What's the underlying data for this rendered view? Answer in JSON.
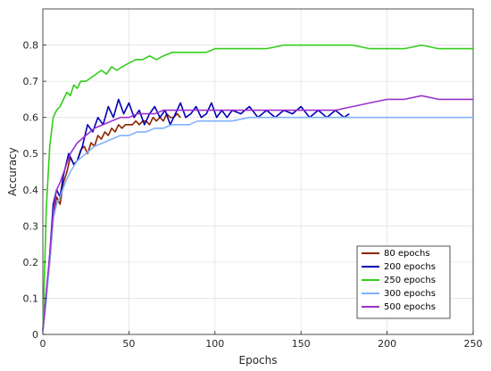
{
  "chart_data": {
    "type": "line",
    "xlabel": "Epochs",
    "ylabel": "Accuracy",
    "xlim": [
      0,
      250
    ],
    "ylim": [
      0,
      0.9
    ],
    "xticks": [
      "0",
      "50",
      "100",
      "150",
      "200",
      "250"
    ],
    "yticks": [
      "0",
      "0.1",
      "0.2",
      "0.3",
      "0.4",
      "0.5",
      "0.6",
      "0.7",
      "0.8"
    ],
    "grid": true,
    "legend_position": "bottom-right",
    "series": [
      {
        "name": "80 epochs",
        "color": "#8B2500",
        "x": [
          0,
          2,
          4,
          6,
          8,
          10,
          12,
          14,
          16,
          18,
          20,
          22,
          24,
          26,
          28,
          30,
          32,
          34,
          36,
          38,
          40,
          42,
          44,
          46,
          48,
          50,
          52,
          54,
          56,
          58,
          60,
          62,
          64,
          66,
          68,
          70,
          72,
          74,
          76,
          78,
          80
        ],
        "y": [
          0.01,
          0.12,
          0.2,
          0.32,
          0.38,
          0.36,
          0.42,
          0.45,
          0.49,
          0.47,
          0.48,
          0.51,
          0.52,
          0.5,
          0.53,
          0.52,
          0.55,
          0.54,
          0.56,
          0.55,
          0.57,
          0.56,
          0.58,
          0.57,
          0.58,
          0.58,
          0.58,
          0.59,
          0.58,
          0.59,
          0.59,
          0.58,
          0.6,
          0.59,
          0.6,
          0.59,
          0.61,
          0.6,
          0.6,
          0.61,
          0.6
        ]
      },
      {
        "name": "200 epochs",
        "color": "#0000B3",
        "x": [
          0,
          2,
          4,
          6,
          8,
          10,
          12,
          15,
          18,
          20,
          23,
          26,
          29,
          32,
          35,
          38,
          41,
          44,
          47,
          50,
          53,
          56,
          59,
          62,
          65,
          68,
          71,
          74,
          77,
          80,
          83,
          86,
          89,
          92,
          95,
          98,
          101,
          104,
          107,
          110,
          115,
          120,
          125,
          130,
          135,
          140,
          145,
          150,
          155,
          160,
          165,
          170,
          175,
          178
        ],
        "y": [
          0.01,
          0.1,
          0.22,
          0.36,
          0.4,
          0.38,
          0.44,
          0.5,
          0.47,
          0.48,
          0.52,
          0.58,
          0.56,
          0.6,
          0.58,
          0.63,
          0.6,
          0.65,
          0.61,
          0.64,
          0.6,
          0.62,
          0.58,
          0.61,
          0.63,
          0.6,
          0.62,
          0.58,
          0.61,
          0.64,
          0.6,
          0.61,
          0.63,
          0.6,
          0.61,
          0.64,
          0.6,
          0.62,
          0.6,
          0.62,
          0.61,
          0.63,
          0.6,
          0.62,
          0.6,
          0.62,
          0.61,
          0.63,
          0.6,
          0.62,
          0.6,
          0.62,
          0.6,
          0.61
        ]
      },
      {
        "name": "250 epochs",
        "color": "#33CC1A",
        "x": [
          0,
          2,
          4,
          6,
          8,
          10,
          12,
          14,
          16,
          18,
          20,
          22,
          25,
          28,
          31,
          34,
          37,
          40,
          43,
          46,
          50,
          54,
          58,
          62,
          66,
          70,
          75,
          80,
          85,
          90,
          95,
          100,
          105,
          110,
          120,
          130,
          140,
          150,
          160,
          170,
          180,
          190,
          200,
          210,
          220,
          230,
          240,
          250
        ],
        "y": [
          0.01,
          0.35,
          0.52,
          0.6,
          0.62,
          0.63,
          0.65,
          0.67,
          0.66,
          0.69,
          0.68,
          0.7,
          0.7,
          0.71,
          0.72,
          0.73,
          0.72,
          0.74,
          0.73,
          0.74,
          0.75,
          0.76,
          0.76,
          0.77,
          0.76,
          0.77,
          0.78,
          0.78,
          0.78,
          0.78,
          0.78,
          0.79,
          0.79,
          0.79,
          0.79,
          0.79,
          0.8,
          0.8,
          0.8,
          0.8,
          0.8,
          0.79,
          0.79,
          0.79,
          0.8,
          0.79,
          0.79,
          0.79
        ]
      },
      {
        "name": "300 epochs",
        "color": "#7FB2FF",
        "x": [
          0,
          2,
          4,
          6,
          8,
          10,
          13,
          16,
          20,
          25,
          30,
          35,
          40,
          45,
          50,
          55,
          60,
          65,
          70,
          75,
          80,
          85,
          90,
          95,
          100,
          110,
          120,
          130,
          140,
          150,
          160,
          170,
          180,
          190,
          200,
          210,
          220,
          230,
          240,
          250
        ],
        "y": [
          0.01,
          0.1,
          0.2,
          0.32,
          0.36,
          0.38,
          0.42,
          0.45,
          0.48,
          0.5,
          0.52,
          0.53,
          0.54,
          0.55,
          0.55,
          0.56,
          0.56,
          0.57,
          0.57,
          0.58,
          0.58,
          0.58,
          0.59,
          0.59,
          0.59,
          0.59,
          0.6,
          0.6,
          0.6,
          0.6,
          0.6,
          0.6,
          0.6,
          0.6,
          0.6,
          0.6,
          0.6,
          0.6,
          0.6,
          0.6
        ]
      },
      {
        "name": "500 epochs",
        "color": "#9932CC",
        "x": [
          0,
          2,
          4,
          6,
          8,
          10,
          13,
          16,
          20,
          25,
          30,
          35,
          40,
          45,
          50,
          55,
          60,
          65,
          70,
          75,
          80,
          85,
          90,
          95,
          100,
          110,
          120,
          130,
          140,
          150,
          160,
          170,
          180,
          190,
          200,
          210,
          220,
          230,
          240,
          250
        ],
        "y": [
          0.01,
          0.12,
          0.22,
          0.34,
          0.4,
          0.42,
          0.46,
          0.5,
          0.53,
          0.55,
          0.57,
          0.58,
          0.59,
          0.6,
          0.6,
          0.61,
          0.61,
          0.61,
          0.62,
          0.62,
          0.62,
          0.62,
          0.62,
          0.62,
          0.62,
          0.62,
          0.62,
          0.62,
          0.62,
          0.62,
          0.62,
          0.62,
          0.63,
          0.64,
          0.65,
          0.65,
          0.66,
          0.65,
          0.65,
          0.65
        ]
      }
    ]
  }
}
